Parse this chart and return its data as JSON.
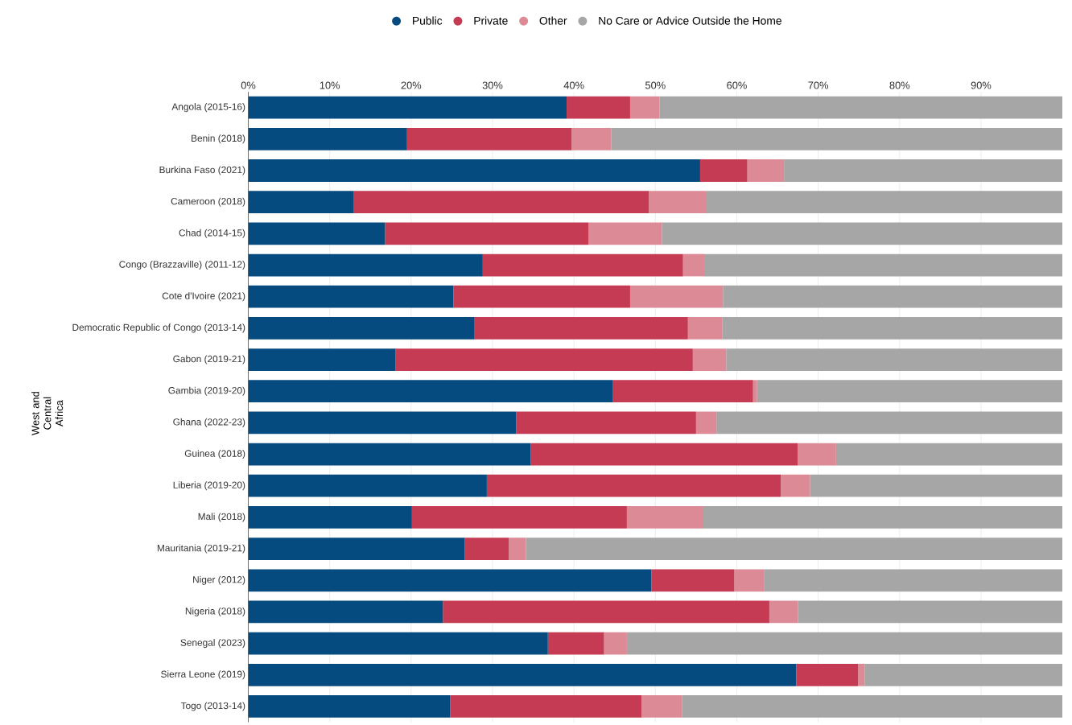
{
  "chart_data": {
    "type": "bar",
    "orientation": "horizontal",
    "stacked": true,
    "ylabel": "West and Central Africa",
    "categories": [
      "Angola (2015-16)",
      "Benin (2018)",
      "Burkina Faso (2021)",
      "Cameroon (2018)",
      "Chad (2014-15)",
      "Congo (Brazzaville) (2011-12)",
      "Cote d'Ivoire (2021)",
      "Democratic Republic of Congo (2013-14)",
      "Gabon (2019-21)",
      "Gambia (2019-20)",
      "Ghana (2022-23)",
      "Guinea (2018)",
      "Liberia (2019-20)",
      "Mali (2018)",
      "Mauritania (2019-21)",
      "Niger (2012)",
      "Nigeria (2018)",
      "Senegal (2023)",
      "Sierra Leone (2019)",
      "Togo (2013-14)"
    ],
    "series": [
      {
        "name": "Public",
        "color": "#064b7f",
        "values": [
          39.1,
          19.5,
          55.5,
          12.9,
          16.8,
          28.8,
          25.2,
          27.8,
          18.1,
          44.8,
          32.9,
          34.7,
          29.3,
          20.1,
          26.6,
          49.5,
          23.9,
          36.8,
          67.3,
          24.8
        ]
      },
      {
        "name": "Private",
        "color": "#c43b53",
        "values": [
          7.8,
          20.2,
          5.8,
          36.3,
          25.0,
          24.6,
          21.7,
          26.2,
          36.5,
          17.2,
          22.1,
          32.8,
          36.1,
          26.4,
          5.4,
          10.2,
          40.1,
          6.9,
          7.6,
          23.5
        ]
      },
      {
        "name": "Other",
        "color": "#dc8a96",
        "values": [
          3.6,
          4.9,
          4.5,
          7.1,
          9.0,
          2.6,
          11.4,
          4.2,
          4.1,
          0.5,
          2.5,
          4.7,
          3.6,
          9.4,
          2.1,
          3.7,
          3.5,
          2.8,
          0.8,
          5.0
        ]
      },
      {
        "name": "No Care or Advice Outside the Home",
        "color": "#a6a6a6",
        "values": [
          49.5,
          55.4,
          34.2,
          43.7,
          49.2,
          44.0,
          41.7,
          41.8,
          41.3,
          37.5,
          42.5,
          27.8,
          31.0,
          44.1,
          65.9,
          36.6,
          32.5,
          53.5,
          24.3,
          46.7
        ]
      }
    ],
    "xlim": [
      0,
      100
    ],
    "xticks": [
      {
        "value": 0,
        "label": "0%"
      },
      {
        "value": 10,
        "label": "10%"
      },
      {
        "value": 20,
        "label": "20%"
      },
      {
        "value": 30,
        "label": "30%"
      },
      {
        "value": 40,
        "label": "40%"
      },
      {
        "value": 50,
        "label": "50%"
      },
      {
        "value": 60,
        "label": "60%"
      },
      {
        "value": 70,
        "label": "70%"
      },
      {
        "value": 80,
        "label": "80%"
      },
      {
        "value": 90,
        "label": "90%"
      }
    ],
    "grid": "x",
    "legend": "top",
    "marker": "circle"
  }
}
